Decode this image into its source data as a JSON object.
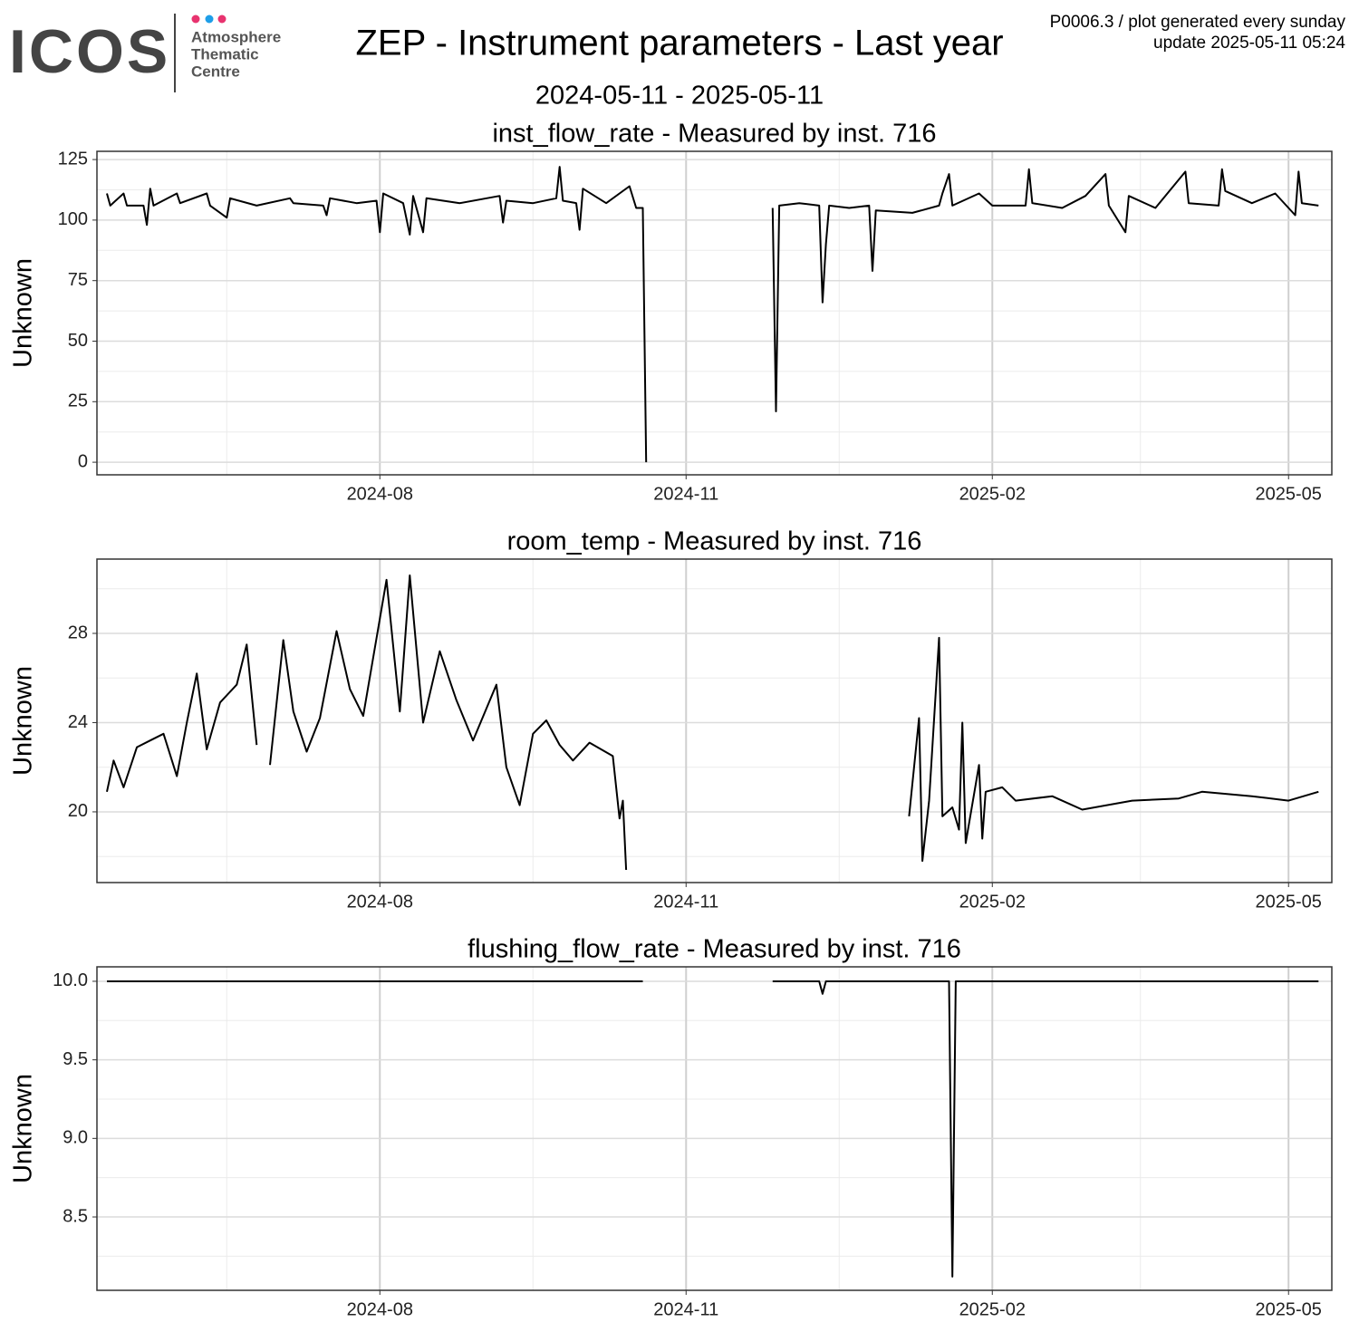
{
  "header": {
    "logo": "ICOS",
    "logo_lines": [
      "Atmosphere",
      "Thematic",
      "Centre"
    ],
    "title": "ZEP - Instrument parameters - Last year",
    "subtitle": "2024-05-11 - 2025-05-11",
    "note_lines": [
      "P0006.3 / plot generated every sunday",
      "update  2025-05-11 05:24"
    ]
  },
  "chart_data": [
    {
      "type": "line",
      "title": "inst_flow_rate - Measured by inst. 716",
      "y_label": "Unknown",
      "color": "#000000",
      "grid": true,
      "xlim": [
        "2024-05-08",
        "2025-05-14"
      ],
      "xticks": [
        {
          "value": "2024-08-01",
          "label": "2024-08"
        },
        {
          "value": "2024-11-01",
          "label": "2024-11"
        },
        {
          "value": "2025-02-01",
          "label": "2025-02"
        },
        {
          "value": "2025-05-01",
          "label": "2025-05"
        }
      ],
      "ylim": [
        -5.2,
        128.4
      ],
      "yticks": [
        0,
        25,
        50,
        75,
        100,
        125
      ],
      "x": [
        "2024-05-11",
        "2024-05-12",
        "2024-05-16",
        "2024-05-17",
        "2024-05-22",
        "2024-05-23",
        "2024-05-24",
        "2024-05-25",
        "2024-06-01",
        "2024-06-02",
        "2024-06-10",
        "2024-06-11",
        "2024-06-16",
        "2024-06-17",
        "2024-06-25",
        "2024-07-05",
        "2024-07-06",
        "2024-07-15",
        "2024-07-16",
        "2024-07-17",
        "2024-07-25",
        "2024-07-31",
        "2024-08-01",
        "2024-08-02",
        "2024-08-08",
        "2024-08-10",
        "2024-08-11",
        "2024-08-14",
        "2024-08-15",
        "2024-08-25",
        "2024-09-06",
        "2024-09-07",
        "2024-09-08",
        "2024-09-16",
        "2024-09-23",
        "2024-09-24",
        "2024-09-25",
        "2024-09-29",
        "2024-09-30",
        "2024-10-01",
        "2024-10-08",
        "2024-10-15",
        "2024-10-17",
        "2024-10-19",
        "2024-10-20",
        "2024-11-01",
        "2024-11-27",
        "2024-11-28",
        "2024-11-29",
        "2024-12-05",
        "2024-12-11",
        "2024-12-12",
        "2024-12-13",
        "2024-12-14",
        "2024-12-20",
        "2024-12-26",
        "2024-12-27",
        "2024-12-28",
        "2025-01-08",
        "2025-01-16",
        "2025-01-17",
        "2025-01-19",
        "2025-01-20",
        "2025-01-28",
        "2025-02-01",
        "2025-02-11",
        "2025-02-12",
        "2025-02-13",
        "2025-02-22",
        "2025-03-01",
        "2025-03-07",
        "2025-03-08",
        "2025-03-13",
        "2025-03-14",
        "2025-03-22",
        "2025-03-31",
        "2025-04-01",
        "2025-04-10",
        "2025-04-11",
        "2025-04-12",
        "2025-04-20",
        "2025-04-27",
        "2025-05-03",
        "2025-05-04",
        "2025-05-05",
        "2025-05-10"
      ],
      "values": [
        111,
        106,
        111,
        106,
        106,
        98,
        113,
        106,
        111,
        107,
        111,
        106,
        101,
        109,
        106,
        109,
        107,
        106,
        102,
        109,
        107,
        108,
        95,
        111,
        107,
        94,
        110,
        95,
        109,
        107,
        110,
        99,
        108,
        107,
        109,
        122,
        108,
        107,
        96,
        113,
        107,
        114,
        105,
        105,
        0,
        null,
        105,
        21,
        106,
        107,
        106,
        66,
        90,
        106,
        105,
        106,
        79,
        104,
        103,
        106,
        111,
        119,
        106,
        111,
        106,
        106,
        121,
        107,
        105,
        110,
        119,
        106,
        95,
        110,
        105,
        120,
        107,
        106,
        121,
        112,
        107,
        111,
        102,
        120,
        107,
        106
      ]
    },
    {
      "type": "line",
      "title": "room_temp - Measured by inst. 716",
      "y_label": "Unknown",
      "color": "#000000",
      "grid": true,
      "xlim": [
        "2024-05-08",
        "2025-05-14"
      ],
      "xticks": [
        {
          "value": "2024-08-01",
          "label": "2024-08"
        },
        {
          "value": "2024-11-01",
          "label": "2024-11"
        },
        {
          "value": "2025-02-01",
          "label": "2025-02"
        },
        {
          "value": "2025-05-01",
          "label": "2025-05"
        }
      ],
      "ylim": [
        16.83,
        31.33
      ],
      "yticks": [
        20,
        24,
        28
      ],
      "x": [
        "2024-05-11",
        "2024-05-13",
        "2024-05-16",
        "2024-05-20",
        "2024-05-24",
        "2024-05-28",
        "2024-06-01",
        "2024-06-04",
        "2024-06-07",
        "2024-06-10",
        "2024-06-14",
        "2024-06-19",
        "2024-06-22",
        "2024-06-25",
        "2024-06-26",
        "2024-06-29",
        "2024-07-03",
        "2024-07-06",
        "2024-07-10",
        "2024-07-14",
        "2024-07-19",
        "2024-07-23",
        "2024-07-27",
        "2024-08-03",
        "2024-08-07",
        "2024-08-10",
        "2024-08-14",
        "2024-08-19",
        "2024-08-24",
        "2024-08-29",
        "2024-09-05",
        "2024-09-08",
        "2024-09-12",
        "2024-09-16",
        "2024-09-20",
        "2024-09-24",
        "2024-09-28",
        "2024-10-03",
        "2024-10-10",
        "2024-10-12",
        "2024-10-13",
        "2024-10-14",
        "2024-11-01",
        "2025-01-07",
        "2025-01-10",
        "2025-01-11",
        "2025-01-13",
        "2025-01-16",
        "2025-01-17",
        "2025-01-20",
        "2025-01-22",
        "2025-01-23",
        "2025-01-24",
        "2025-01-28",
        "2025-01-29",
        "2025-01-30",
        "2025-02-04",
        "2025-02-08",
        "2025-02-19",
        "2025-02-28",
        "2025-03-15",
        "2025-03-29",
        "2025-04-05",
        "2025-04-20",
        "2025-05-01",
        "2025-05-10"
      ],
      "values": [
        20.9,
        22.3,
        21.1,
        22.9,
        23.2,
        23.5,
        21.6,
        24.0,
        26.2,
        22.8,
        24.9,
        25.7,
        27.5,
        23.0,
        null,
        22.1,
        27.7,
        24.5,
        22.7,
        24.2,
        28.1,
        25.5,
        24.3,
        30.4,
        24.5,
        30.6,
        24.0,
        27.2,
        25.0,
        23.2,
        25.7,
        22.0,
        20.3,
        23.5,
        24.1,
        23.0,
        22.3,
        23.1,
        22.5,
        19.7,
        20.5,
        17.4,
        null,
        19.8,
        24.2,
        17.8,
        20.5,
        27.8,
        19.8,
        20.2,
        19.2,
        24.0,
        18.6,
        22.1,
        18.8,
        20.9,
        21.1,
        20.5,
        20.7,
        20.1,
        20.5,
        20.6,
        20.9,
        20.7,
        20.5,
        20.9
      ]
    },
    {
      "type": "line",
      "title": "flushing_flow_rate - Measured by inst. 716",
      "y_label": "Unknown",
      "color": "#000000",
      "grid": true,
      "xlim": [
        "2024-05-08",
        "2025-05-14"
      ],
      "xticks": [
        {
          "value": "2024-08-01",
          "label": "2024-08"
        },
        {
          "value": "2024-11-01",
          "label": "2024-11"
        },
        {
          "value": "2025-02-01",
          "label": "2025-02"
        },
        {
          "value": "2025-05-01",
          "label": "2025-05"
        }
      ],
      "ylim": [
        8.033,
        10.092
      ],
      "yticks": [
        {
          "value": 10,
          "label": "10.0"
        },
        9.5,
        {
          "value": 9,
          "label": "9.0"
        },
        8.5
      ],
      "x": [
        "2024-05-11",
        "2024-10-19",
        "2024-11-01",
        "2024-11-27",
        "2024-12-11",
        "2024-12-12",
        "2024-12-13",
        "2025-01-19",
        "2025-01-20",
        "2025-01-21",
        "2025-05-10"
      ],
      "values": [
        10,
        10,
        null,
        10,
        10,
        9.92,
        10,
        10,
        8.12,
        10,
        10
      ]
    }
  ]
}
